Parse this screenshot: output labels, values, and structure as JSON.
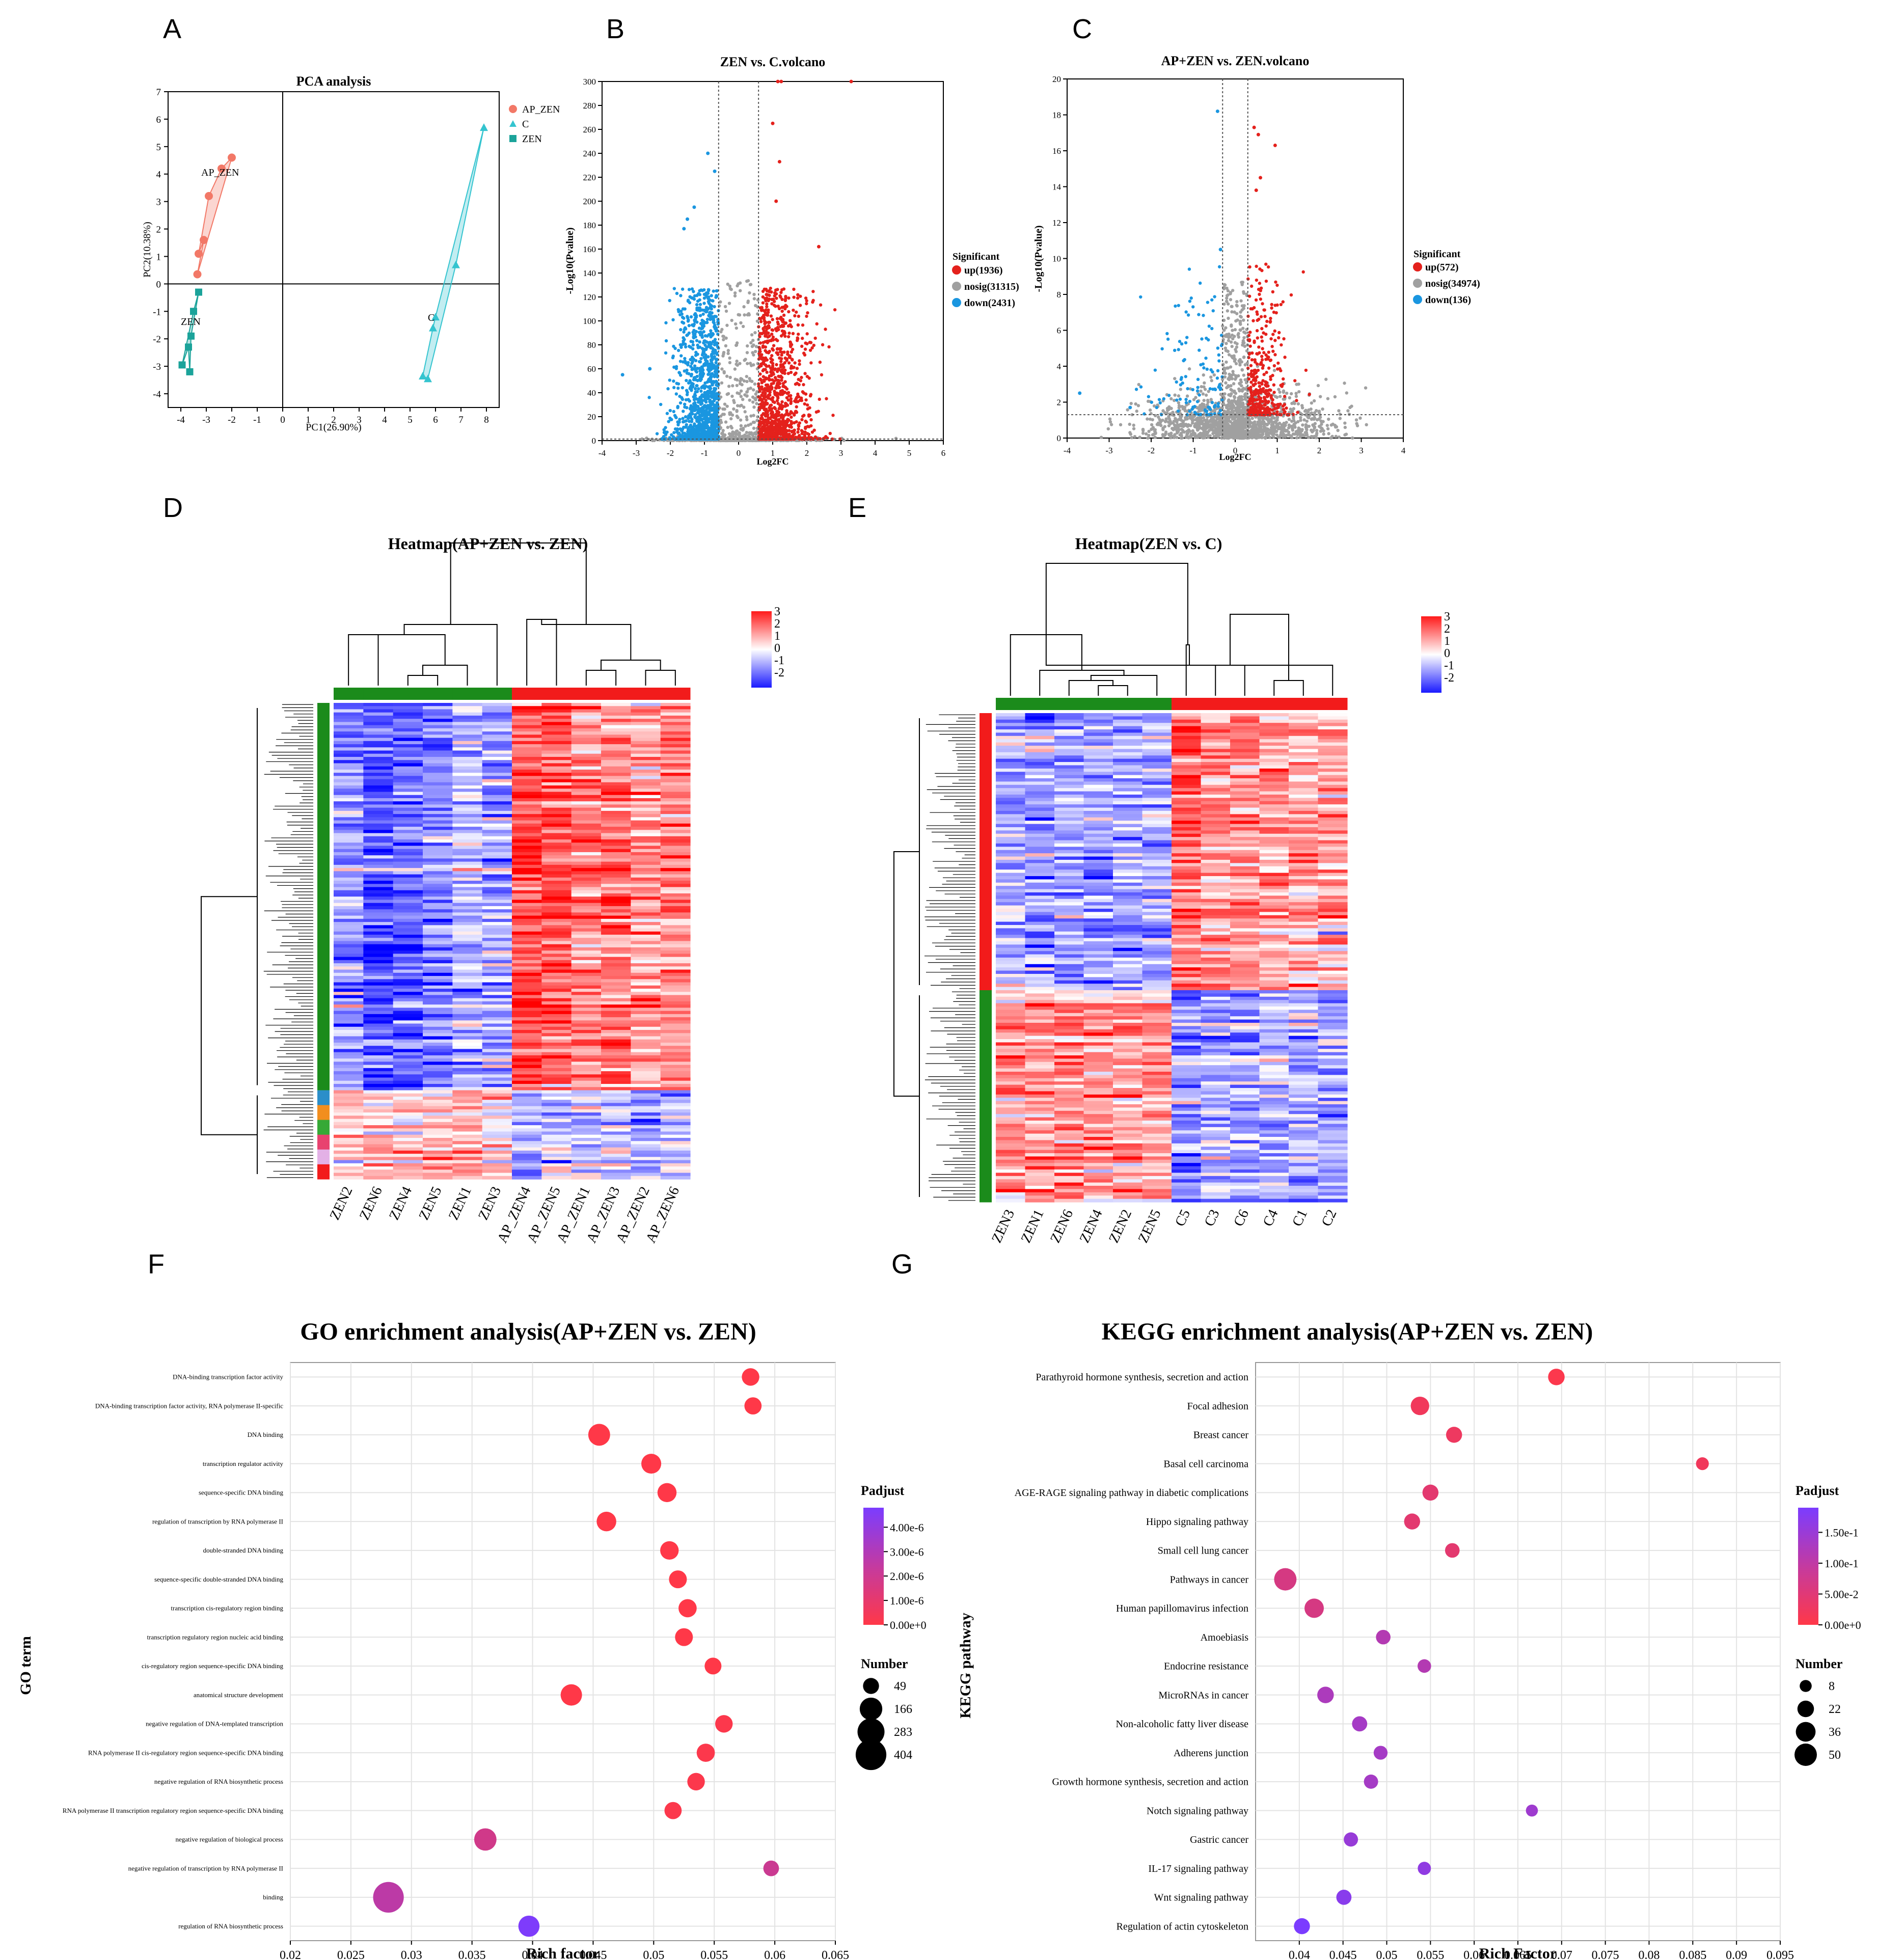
{
  "panel_labels": [
    "A",
    "B",
    "C",
    "D",
    "E",
    "F",
    "G"
  ],
  "chart_data": [
    {
      "id": "A",
      "type": "scatter",
      "title": "PCA analysis",
      "xlabel": "PC1(26.90%)",
      "ylabel": "PC2(10.38%)",
      "xlim": [
        -4.5,
        8.5
      ],
      "ylim": [
        -4.5,
        7
      ],
      "xticks": [
        -4,
        -3,
        -2,
        -1,
        0,
        1,
        2,
        3,
        4,
        5,
        6,
        7,
        8
      ],
      "yticks": [
        -4,
        -3,
        -2,
        -1,
        0,
        1,
        2,
        3,
        4,
        5,
        6,
        7
      ],
      "legend": [
        "AP_ZEN",
        "C",
        "ZEN"
      ],
      "group_labels": [
        "AP_ZEN",
        "C",
        "ZEN"
      ],
      "series": [
        {
          "name": "AP_ZEN",
          "color": "#F27867",
          "marker": "circle",
          "points": [
            [
              -2.0,
              4.6
            ],
            [
              -2.4,
              4.2
            ],
            [
              -2.9,
              3.2
            ],
            [
              -3.1,
              1.6
            ],
            [
              -3.3,
              1.1
            ],
            [
              -3.35,
              0.35
            ]
          ]
        },
        {
          "name": "C",
          "color": "#34C4CF",
          "marker": "triangle",
          "points": [
            [
              7.9,
              5.7
            ],
            [
              6.8,
              0.7
            ],
            [
              5.9,
              -1.6
            ],
            [
              6.0,
              -1.2
            ],
            [
              5.5,
              -3.35
            ],
            [
              5.7,
              -3.45
            ]
          ]
        },
        {
          "name": "ZEN",
          "color": "#1BA39A",
          "marker": "square",
          "points": [
            [
              -3.3,
              -0.3
            ],
            [
              -3.5,
              -1.0
            ],
            [
              -3.6,
              -1.9
            ],
            [
              -3.7,
              -2.3
            ],
            [
              -3.95,
              -2.95
            ],
            [
              -3.65,
              -3.2
            ]
          ]
        }
      ]
    },
    {
      "id": "B",
      "type": "scatter",
      "title": "ZEN vs. C.volcano",
      "xlabel": "Log2FC",
      "ylabel": "-Log10(Pvalue)",
      "xlim": [
        -4,
        6
      ],
      "ylim": [
        0,
        300
      ],
      "xticks": [
        -4,
        -3,
        -2,
        -1,
        0,
        1,
        2,
        3,
        4,
        5,
        6
      ],
      "yticks": [
        0,
        20,
        40,
        60,
        80,
        100,
        120,
        140,
        160,
        180,
        200,
        220,
        240,
        260,
        280,
        300
      ],
      "legend_title": "Significant",
      "legend": [
        "up(1936)",
        "nosig(31315)",
        "down(2431)"
      ],
      "colors": {
        "up": "#E4211C",
        "nosig": "#A0A0A0",
        "down": "#1A96E0"
      },
      "vlines": [
        -0.585,
        0.585
      ],
      "hline": 1.3,
      "highlight_points": {
        "up": [
          [
            1.15,
            300
          ],
          [
            1.25,
            300
          ],
          [
            3.3,
            300
          ],
          [
            1.0,
            265
          ],
          [
            1.2,
            233
          ],
          [
            2.35,
            162
          ],
          [
            1.1,
            200
          ]
        ],
        "down": [
          [
            -0.9,
            240
          ],
          [
            -1.3,
            195
          ],
          [
            -1.5,
            185
          ],
          [
            -1.6,
            177
          ],
          [
            -0.7,
            225
          ],
          [
            -3.4,
            55
          ],
          [
            -2.6,
            60
          ]
        ]
      }
    },
    {
      "id": "C",
      "type": "scatter",
      "title": "AP+ZEN vs. ZEN.volcano",
      "xlabel": "Log2FC",
      "ylabel": "-Log10(Pvalue)",
      "xlim": [
        -4,
        4
      ],
      "ylim": [
        0,
        20
      ],
      "xticks": [
        -4,
        -3,
        -2,
        -1,
        0,
        1,
        2,
        3,
        4
      ],
      "yticks": [
        0,
        2,
        4,
        6,
        8,
        10,
        12,
        14,
        16,
        18,
        20
      ],
      "legend_title": "Significant",
      "legend": [
        "up(572)",
        "nosig(34974)",
        "down(136)"
      ],
      "colors": {
        "up": "#E4211C",
        "nosig": "#A0A0A0",
        "down": "#1A96E0"
      },
      "vlines": [
        -0.3,
        0.3
      ],
      "hline": 1.3,
      "highlight_points": {
        "up": [
          [
            0.45,
            17.3
          ],
          [
            0.55,
            16.9
          ],
          [
            0.95,
            16.3
          ],
          [
            0.6,
            14.5
          ],
          [
            0.5,
            13.8
          ]
        ],
        "down": [
          [
            -0.42,
            18.2
          ],
          [
            -0.35,
            10.5
          ],
          [
            -3.7,
            2.5
          ],
          [
            -2.5,
            1.7
          ]
        ]
      }
    },
    {
      "id": "D",
      "type": "heatmap",
      "title": "Heatmap(AP+ZEN vs. ZEN)",
      "columns": [
        "ZEN2",
        "ZEN6",
        "ZEN4",
        "ZEN5",
        "ZEN1",
        "ZEN3",
        "AP_ZEN4",
        "AP_ZEN5",
        "AP_ZEN1",
        "AP_ZEN3",
        "AP_ZEN2",
        "AP_ZEN6"
      ],
      "group_colors": [
        "#1B8B1B",
        "#1B8B1B",
        "#1B8B1B",
        "#1B8B1B",
        "#1B8B1B",
        "#1B8B1B",
        "#F21B1B",
        "#F21B1B",
        "#F21B1B",
        "#F21B1B",
        "#F21B1B",
        "#F21B1B"
      ],
      "col_means_top": [
        -1.1,
        -1.7,
        -1.5,
        -1.3,
        -0.6,
        -0.9,
        1.8,
        1.6,
        1.2,
        1.3,
        1.0,
        1.1
      ],
      "col_means_bottom": [
        0.5,
        0.7,
        0.4,
        0.6,
        0.9,
        0.3,
        -0.6,
        -0.3,
        -0.5,
        -0.4,
        -0.7,
        -0.5
      ],
      "split_fraction": 0.815,
      "colorbar_ticks": [
        "3",
        "2",
        "1",
        "0",
        "-1",
        "-2"
      ]
    },
    {
      "id": "E",
      "type": "heatmap",
      "title": "Heatmap(ZEN vs. C)",
      "columns": [
        "ZEN3",
        "ZEN1",
        "ZEN6",
        "ZEN4",
        "ZEN2",
        "ZEN5",
        "C5",
        "C3",
        "C6",
        "C4",
        "C1",
        "C2"
      ],
      "group_colors": [
        "#1B8B1B",
        "#1B8B1B",
        "#1B8B1B",
        "#1B8B1B",
        "#1B8B1B",
        "#1B8B1B",
        "#F21B1B",
        "#F21B1B",
        "#F21B1B",
        "#F21B1B",
        "#F21B1B",
        "#F21B1B"
      ],
      "col_means_top": [
        -0.7,
        -0.9,
        -0.8,
        -1.0,
        -0.9,
        -0.8,
        1.5,
        1.1,
        1.2,
        0.9,
        0.8,
        0.9
      ],
      "col_means_bottom": [
        0.9,
        1.0,
        1.1,
        0.9,
        0.8,
        0.9,
        -1.2,
        -0.8,
        -0.9,
        -0.7,
        -0.8,
        -0.9
      ],
      "split_fraction": 0.565,
      "colorbar_ticks": [
        "3",
        "2",
        "1",
        "0",
        "-1",
        "-2"
      ]
    },
    {
      "id": "F",
      "type": "scatter",
      "title": "GO enrichment analysis(AP+ZEN vs. ZEN)",
      "xlabel": "Rich factor",
      "ylabel": "GO term",
      "xlim": [
        0.02,
        0.065
      ],
      "xticks": [
        "0.02",
        "0.025",
        "0.03",
        "0.035",
        "0.04",
        "0.045",
        "0.05",
        "0.055",
        "0.06",
        "0.065"
      ],
      "colorbar_title": "Padjust",
      "colorbar_ticks": [
        "4.00e-6",
        "3.00e-6",
        "2.00e-6",
        "1.00e-6",
        "0.00e+0"
      ],
      "padj_max": 4.5e-06,
      "size_title": "Number",
      "size_legend": [
        49,
        166,
        283,
        404
      ],
      "terms": [
        "DNA-binding transcription factor activity",
        "DNA-binding transcription factor activity, RNA polymerase II-specific",
        "DNA binding",
        "transcription regulator activity",
        "sequence-specific DNA binding",
        "regulation of transcription by RNA polymerase II",
        "double-stranded DNA binding",
        "sequence-specific double-stranded DNA binding",
        "transcription cis-regulatory region binding",
        "transcription regulatory region nucleic acid binding",
        "cis-regulatory region sequence-specific DNA binding",
        "anatomical structure development",
        "negative regulation of DNA-templated transcription",
        "RNA polymerase II cis-regulatory region sequence-specific DNA binding",
        "negative regulation of RNA biosynthetic process",
        "RNA polymerase II transcription regulatory region sequence-specific DNA binding",
        "negative regulation of biological process",
        "negative regulation of transcription by RNA polymerase II",
        "binding",
        "regulation of RNA biosynthetic process"
      ],
      "rich_factor": [
        0.058,
        0.0582,
        0.0455,
        0.0498,
        0.0511,
        0.0461,
        0.0513,
        0.052,
        0.0528,
        0.0525,
        0.0549,
        0.0432,
        0.0558,
        0.0543,
        0.0535,
        0.0516,
        0.0361,
        0.0597,
        0.0281,
        0.0397
      ],
      "number": [
        70,
        65,
        150,
        110,
        95,
        105,
        85,
        75,
        80,
        75,
        60,
        140,
        70,
        80,
        70,
        65,
        160,
        45,
        404,
        135
      ],
      "padjust": [
        0.0,
        0.0,
        0.0,
        0.0,
        0.0,
        0.0,
        0.0,
        0.0,
        0.0,
        0.0,
        0.0,
        0.0,
        1e-07,
        1e-07,
        1e-07,
        1e-07,
        1.6e-06,
        1.8e-06,
        2.3e-06,
        4.4e-06
      ]
    },
    {
      "id": "G",
      "type": "scatter",
      "title": "KEGG enrichment analysis(AP+ZEN vs. ZEN)",
      "xlabel": "Rich Factor",
      "ylabel": "KEGG pathway",
      "xlim": [
        0.035,
        0.095
      ],
      "xticks": [
        "0.04",
        "0.045",
        "0.05",
        "0.055",
        "0.06",
        "0.065",
        "0.07",
        "0.075",
        "0.08",
        "0.085",
        "0.09",
        "0.095"
      ],
      "colorbar_title": "Padjust",
      "colorbar_ticks": [
        "1.50e-1",
        "1.00e-1",
        "5.00e-2",
        "0.00e+0"
      ],
      "padj_max": 0.19,
      "size_title": "Number",
      "size_legend": [
        8,
        22,
        36,
        50
      ],
      "terms": [
        "Parathyroid hormone synthesis, secretion and action",
        "Focal adhesion",
        "Breast cancer",
        "Basal cell carcinoma",
        "AGE-RAGE signaling pathway in diabetic complications",
        "Hippo signaling pathway",
        "Small cell lung cancer",
        "Pathways in cancer",
        "Human papillomavirus infection",
        "Amoebiasis",
        "Endocrine resistance",
        "MicroRNAs in cancer",
        "Non-alcoholic fatty liver disease",
        "Adherens junction",
        "Growth hormone synthesis, secretion and action",
        "Notch signaling pathway",
        "Gastric cancer",
        "IL-17 signaling pathway",
        "Wnt signaling pathway",
        "Regulation of actin cytoskeleton"
      ],
      "rich_factor": [
        0.0694,
        0.0538,
        0.0577,
        0.0861,
        0.055,
        0.0529,
        0.0575,
        0.0384,
        0.0417,
        0.0496,
        0.0543,
        0.043,
        0.0469,
        0.0493,
        0.0482,
        0.0666,
        0.0459,
        0.0543,
        0.0451,
        0.0403
      ],
      "number": [
        22,
        30,
        20,
        10,
        20,
        20,
        15,
        50,
        34,
        15,
        12,
        22,
        17,
        13,
        14,
        8,
        14,
        11,
        17,
        20
      ],
      "padjust": [
        0.005,
        0.02,
        0.025,
        0.02,
        0.04,
        0.04,
        0.04,
        0.06,
        0.06,
        0.11,
        0.11,
        0.12,
        0.13,
        0.13,
        0.13,
        0.14,
        0.15,
        0.16,
        0.17,
        0.19
      ]
    }
  ]
}
